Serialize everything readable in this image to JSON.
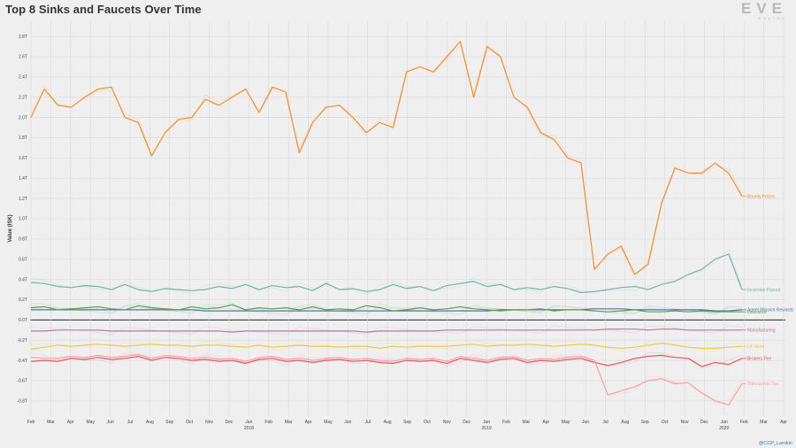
{
  "title": "Top 8 Sinks and Faucets Over Time",
  "logo": {
    "text": "EVE",
    "sub": "ONLINE"
  },
  "credit": "@CCP_Larrikin",
  "chart_data": {
    "type": "line",
    "title": "Top 8 Sinks and Faucets Over Time",
    "ylabel": "Value (ISK)",
    "xlabel": "",
    "ylim": [
      -0.95,
      2.95
    ],
    "yticks": [
      -0.8,
      -0.6,
      -0.4,
      -0.2,
      0,
      0.2,
      0.4,
      0.6,
      0.8,
      1.0,
      1.2,
      1.4,
      1.6,
      1.8,
      2.0,
      2.2,
      2.4,
      2.6,
      2.8
    ],
    "ytick_labels": [
      "-0.8T",
      "-0.6T",
      "-0.4T",
      "-0.2T",
      "0.0T",
      "0.2T",
      "0.4T",
      "0.6T",
      "0.8T",
      "1.0T",
      "1.2T",
      "1.4T",
      "1.6T",
      "1.8T",
      "2.0T",
      "2.2T",
      "2.4T",
      "2.6T",
      "2.8T"
    ],
    "xticks": [
      {
        "label": "Feb",
        "year": ""
      },
      {
        "label": "Mar",
        "year": ""
      },
      {
        "label": "Apr",
        "year": ""
      },
      {
        "label": "May",
        "year": ""
      },
      {
        "label": "Jun",
        "year": ""
      },
      {
        "label": "Jul",
        "year": ""
      },
      {
        "label": "Aug",
        "year": ""
      },
      {
        "label": "Sep",
        "year": ""
      },
      {
        "label": "Oct",
        "year": ""
      },
      {
        "label": "Nov",
        "year": ""
      },
      {
        "label": "Dec",
        "year": ""
      },
      {
        "label": "Jan",
        "year": "2018"
      },
      {
        "label": "Feb",
        "year": ""
      },
      {
        "label": "Mar",
        "year": ""
      },
      {
        "label": "Apr",
        "year": ""
      },
      {
        "label": "May",
        "year": ""
      },
      {
        "label": "Jun",
        "year": ""
      },
      {
        "label": "Jul",
        "year": ""
      },
      {
        "label": "Aug",
        "year": ""
      },
      {
        "label": "Sep",
        "year": ""
      },
      {
        "label": "Oct",
        "year": ""
      },
      {
        "label": "Nov",
        "year": ""
      },
      {
        "label": "Dec",
        "year": ""
      },
      {
        "label": "Jan",
        "year": "2019"
      },
      {
        "label": "Feb",
        "year": ""
      },
      {
        "label": "Mar",
        "year": ""
      },
      {
        "label": "Apr",
        "year": ""
      },
      {
        "label": "May",
        "year": ""
      },
      {
        "label": "Jun",
        "year": ""
      },
      {
        "label": "Jul",
        "year": ""
      },
      {
        "label": "Aug",
        "year": ""
      },
      {
        "label": "Sep",
        "year": ""
      },
      {
        "label": "Oct",
        "year": ""
      },
      {
        "label": "Nov",
        "year": ""
      },
      {
        "label": "Dec",
        "year": ""
      },
      {
        "label": "Jan",
        "year": "2020"
      },
      {
        "label": "Feb",
        "year": ""
      },
      {
        "label": "Mar",
        "year": ""
      },
      {
        "label": "Apr",
        "year": ""
      }
    ],
    "grid": true,
    "legend": "inline-right",
    "series": [
      {
        "name": "Bounty Prizes",
        "color": "#f28e2b",
        "values": [
          2.0,
          2.28,
          2.12,
          2.1,
          2.2,
          2.28,
          2.3,
          2.0,
          1.95,
          1.62,
          1.85,
          1.98,
          2.0,
          2.18,
          2.12,
          2.2,
          2.28,
          2.05,
          2.3,
          2.25,
          1.65,
          1.95,
          2.1,
          2.12,
          2.0,
          1.85,
          1.95,
          1.9,
          2.45,
          2.5,
          2.45,
          2.6,
          2.75,
          2.2,
          2.7,
          2.6,
          2.2,
          2.1,
          1.85,
          1.78,
          1.6,
          1.55,
          0.5,
          0.65,
          0.73,
          0.45,
          0.55,
          1.15,
          1.5,
          1.45,
          1.45,
          1.55,
          1.45,
          1.22
        ]
      },
      {
        "name": "Incursion Payout",
        "color": "#6fb5a7",
        "values": [
          0.37,
          0.36,
          0.33,
          0.32,
          0.34,
          0.33,
          0.3,
          0.35,
          0.3,
          0.28,
          0.31,
          0.3,
          0.29,
          0.3,
          0.33,
          0.31,
          0.35,
          0.3,
          0.34,
          0.32,
          0.33,
          0.29,
          0.36,
          0.3,
          0.31,
          0.28,
          0.3,
          0.35,
          0.31,
          0.33,
          0.29,
          0.34,
          0.36,
          0.38,
          0.33,
          0.35,
          0.3,
          0.32,
          0.3,
          0.33,
          0.31,
          0.27,
          0.28,
          0.3,
          0.32,
          0.33,
          0.3,
          0.35,
          0.38,
          0.45,
          0.5,
          0.6,
          0.65,
          0.3
        ]
      },
      {
        "name": "Agent Mission Rewards",
        "color": "#4e79a7",
        "values": [
          0.1,
          0.1,
          0.1,
          0.1,
          0.1,
          0.1,
          0.1,
          0.1,
          0.1,
          0.1,
          0.1,
          0.1,
          0.1,
          0.09,
          0.09,
          0.09,
          0.09,
          0.09,
          0.09,
          0.09,
          0.09,
          0.09,
          0.09,
          0.09,
          0.09,
          0.09,
          0.09,
          0.09,
          0.09,
          0.09,
          0.09,
          0.09,
          0.09,
          0.09,
          0.09,
          0.1,
          0.1,
          0.1,
          0.1,
          0.1,
          0.1,
          0.1,
          0.11,
          0.11,
          0.11,
          0.1,
          0.1,
          0.1,
          0.1,
          0.1,
          0.1,
          0.09,
          0.09,
          0.1
        ]
      },
      {
        "name": "Insurance",
        "color": "#59a14f",
        "values": [
          0.12,
          0.13,
          0.1,
          0.11,
          0.12,
          0.13,
          0.11,
          0.1,
          0.14,
          0.12,
          0.11,
          0.1,
          0.13,
          0.11,
          0.12,
          0.15,
          0.1,
          0.12,
          0.11,
          0.12,
          0.1,
          0.13,
          0.1,
          0.11,
          0.1,
          0.14,
          0.12,
          0.09,
          0.1,
          0.12,
          0.1,
          0.11,
          0.13,
          0.11,
          0.1,
          0.09,
          0.1,
          0.1,
          0.11,
          0.09,
          0.1,
          0.1,
          0.09,
          0.08,
          0.09,
          0.1,
          0.08,
          0.08,
          0.09,
          0.08,
          0.09,
          0.08,
          0.08,
          0.08
        ]
      },
      {
        "name": "Manufacturing",
        "color": "#b07aa1",
        "values": [
          -0.11,
          -0.11,
          -0.1,
          -0.1,
          -0.1,
          -0.1,
          -0.11,
          -0.11,
          -0.11,
          -0.11,
          -0.11,
          -0.11,
          -0.11,
          -0.11,
          -0.11,
          -0.12,
          -0.11,
          -0.11,
          -0.11,
          -0.11,
          -0.11,
          -0.11,
          -0.11,
          -0.11,
          -0.11,
          -0.12,
          -0.11,
          -0.11,
          -0.11,
          -0.11,
          -0.11,
          -0.1,
          -0.1,
          -0.1,
          -0.1,
          -0.1,
          -0.1,
          -0.1,
          -0.1,
          -0.1,
          -0.1,
          -0.1,
          -0.1,
          -0.09,
          -0.09,
          -0.09,
          -0.1,
          -0.09,
          -0.09,
          -0.1,
          -0.1,
          -0.1,
          -0.1,
          -0.1
        ]
      },
      {
        "name": "LP Store",
        "color": "#edc948",
        "values": [
          -0.29,
          -0.27,
          -0.25,
          -0.26,
          -0.25,
          -0.24,
          -0.25,
          -0.26,
          -0.25,
          -0.24,
          -0.25,
          -0.25,
          -0.26,
          -0.25,
          -0.25,
          -0.26,
          -0.27,
          -0.25,
          -0.27,
          -0.26,
          -0.25,
          -0.26,
          -0.26,
          -0.27,
          -0.26,
          -0.26,
          -0.28,
          -0.26,
          -0.27,
          -0.26,
          -0.26,
          -0.26,
          -0.25,
          -0.24,
          -0.26,
          -0.25,
          -0.25,
          -0.24,
          -0.25,
          -0.26,
          -0.25,
          -0.24,
          -0.25,
          -0.27,
          -0.28,
          -0.27,
          -0.25,
          -0.23,
          -0.25,
          -0.27,
          -0.28,
          -0.28,
          -0.27,
          -0.26
        ]
      },
      {
        "name": "Brokers Fee",
        "color": "#e15759",
        "values": [
          -0.41,
          -0.4,
          -0.41,
          -0.38,
          -0.39,
          -0.37,
          -0.39,
          -0.38,
          -0.36,
          -0.4,
          -0.37,
          -0.38,
          -0.4,
          -0.39,
          -0.41,
          -0.4,
          -0.43,
          -0.39,
          -0.38,
          -0.41,
          -0.4,
          -0.42,
          -0.4,
          -0.39,
          -0.41,
          -0.4,
          -0.42,
          -0.43,
          -0.4,
          -0.41,
          -0.4,
          -0.43,
          -0.38,
          -0.4,
          -0.42,
          -0.39,
          -0.38,
          -0.42,
          -0.4,
          -0.41,
          -0.39,
          -0.38,
          -0.42,
          -0.45,
          -0.42,
          -0.38,
          -0.36,
          -0.35,
          -0.37,
          -0.38,
          -0.46,
          -0.42,
          -0.44,
          -0.38
        ]
      },
      {
        "name": "Transaction Tax",
        "color": "#ff9da7",
        "values": [
          -0.37,
          -0.38,
          -0.38,
          -0.36,
          -0.37,
          -0.35,
          -0.37,
          -0.36,
          -0.34,
          -0.38,
          -0.35,
          -0.36,
          -0.38,
          -0.37,
          -0.39,
          -0.38,
          -0.41,
          -0.37,
          -0.36,
          -0.39,
          -0.38,
          -0.4,
          -0.38,
          -0.37,
          -0.39,
          -0.38,
          -0.4,
          -0.41,
          -0.38,
          -0.39,
          -0.38,
          -0.41,
          -0.36,
          -0.38,
          -0.4,
          -0.37,
          -0.36,
          -0.4,
          -0.38,
          -0.39,
          -0.37,
          -0.36,
          -0.4,
          -0.74,
          -0.7,
          -0.66,
          -0.6,
          -0.58,
          -0.63,
          -0.62,
          -0.72,
          -0.8,
          -0.84,
          -0.63
        ]
      }
    ]
  }
}
